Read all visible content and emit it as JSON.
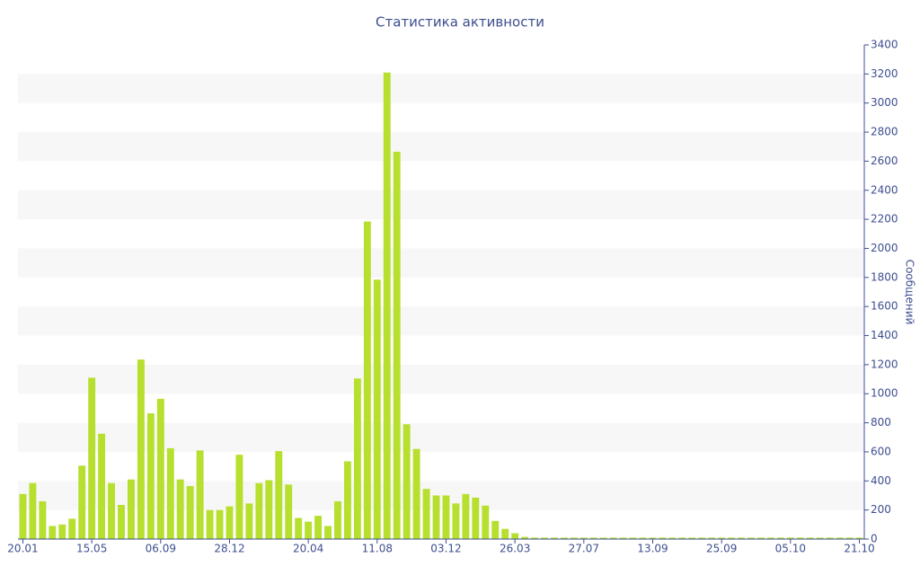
{
  "chart_data": {
    "type": "bar",
    "title": "Статистика активности",
    "y_label": "Сообщений",
    "y_axis_side": "right",
    "categories": [
      "20.01",
      null,
      null,
      null,
      null,
      null,
      null,
      "15.05",
      null,
      null,
      null,
      null,
      null,
      null,
      "06.09",
      null,
      null,
      null,
      null,
      null,
      null,
      "28.12",
      null,
      null,
      null,
      null,
      null,
      null,
      null,
      "20.04",
      null,
      null,
      null,
      null,
      null,
      null,
      "11.08",
      null,
      null,
      null,
      null,
      null,
      null,
      "03.12",
      null,
      null,
      null,
      null,
      null,
      null,
      "26.03",
      null,
      null,
      null,
      null,
      null,
      null,
      "27.07",
      null,
      null,
      null,
      null,
      null,
      null,
      "13.09",
      null,
      null,
      null,
      null,
      null,
      null,
      "25.09",
      null,
      null,
      null,
      null,
      null,
      null,
      "05.10",
      null,
      null,
      null,
      null,
      null,
      null,
      "21.10"
    ],
    "values": [
      310,
      385,
      260,
      90,
      100,
      140,
      505,
      1110,
      725,
      385,
      235,
      410,
      1235,
      865,
      965,
      625,
      410,
      365,
      610,
      200,
      200,
      225,
      580,
      245,
      385,
      405,
      605,
      375,
      145,
      120,
      160,
      90,
      260,
      535,
      1105,
      2185,
      1785,
      3210,
      2665,
      790,
      620,
      345,
      300,
      300,
      245,
      310,
      285,
      230,
      125,
      70,
      40,
      15,
      10,
      10,
      10,
      10,
      10,
      10,
      10,
      10,
      10,
      10,
      10,
      10,
      10,
      10,
      10,
      10,
      10,
      10,
      10,
      10,
      10,
      10,
      10,
      10,
      10,
      10,
      10,
      10,
      10,
      10,
      10,
      10,
      10,
      10
    ],
    "color": "#b6df2e",
    "band_color": "#f7f7f7",
    "ylim": [
      0,
      3400
    ],
    "yticks": [
      0,
      200,
      400,
      600,
      800,
      1000,
      1200,
      1400,
      1600,
      1800,
      2000,
      2200,
      2400,
      2600,
      2800,
      3000,
      3200,
      3400
    ],
    "bands": true
  }
}
